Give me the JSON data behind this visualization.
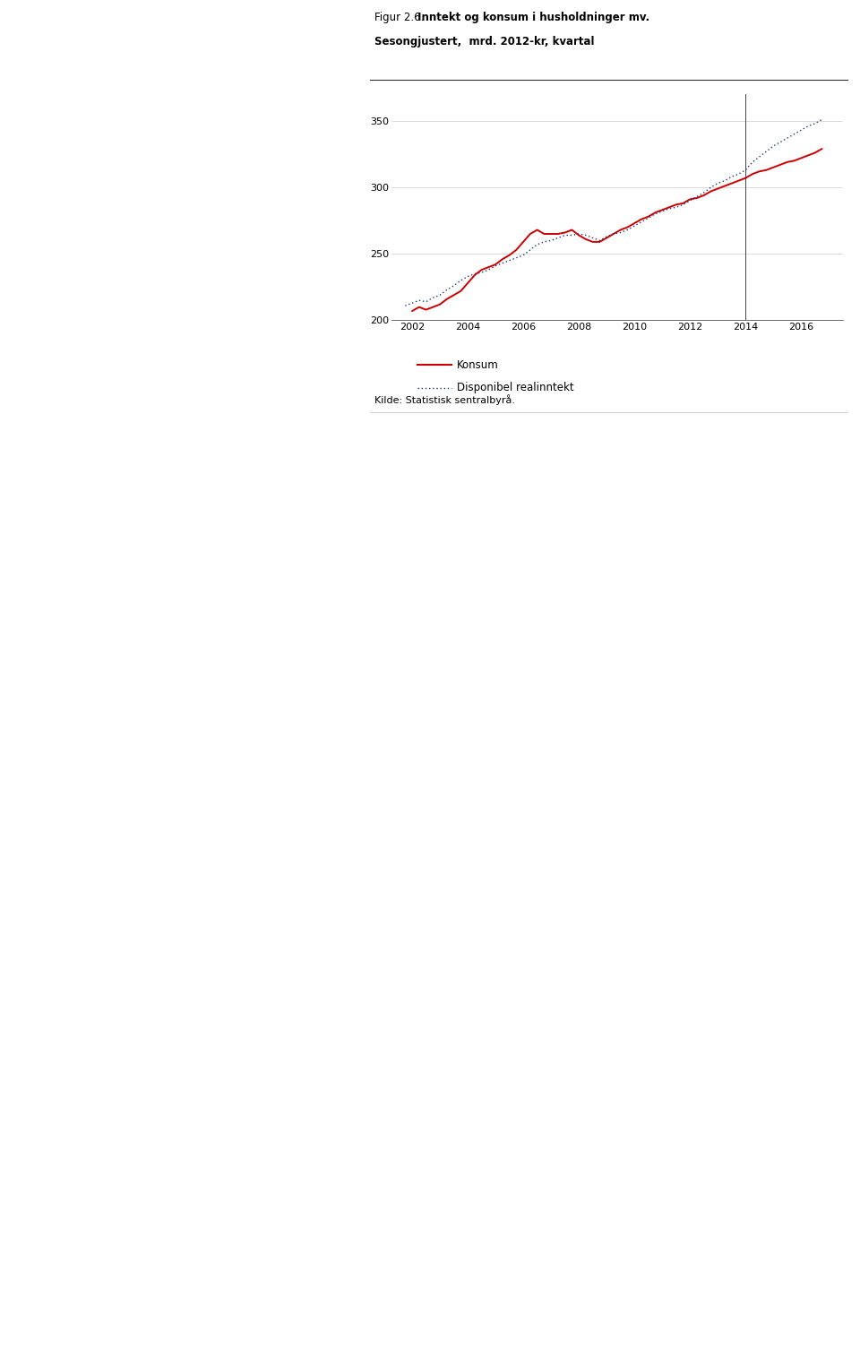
{
  "title_regular": "Figur 2.6.",
  "title_bold": " Inntekt og konsum i husholdninger mv.",
  "subtitle": "Sesongjustert,  mrd. 2012-kr, kvartal",
  "source": "Kilde: Statistisk sentralbyrå.",
  "legend_konsum": "Konsum",
  "legend_inntekt": "Disponibel realinntekt",
  "ylim": [
    200,
    370
  ],
  "yticks": [
    200,
    250,
    300,
    350
  ],
  "xmin": 2001.25,
  "xmax": 2017.5,
  "xticks": [
    2002,
    2004,
    2006,
    2008,
    2010,
    2012,
    2014,
    2016
  ],
  "vline_x": 2014.0,
  "konsum": [
    [
      2002.0,
      207
    ],
    [
      2002.25,
      210
    ],
    [
      2002.5,
      208
    ],
    [
      2002.75,
      210
    ],
    [
      2003.0,
      212
    ],
    [
      2003.25,
      216
    ],
    [
      2003.5,
      219
    ],
    [
      2003.75,
      222
    ],
    [
      2004.0,
      228
    ],
    [
      2004.25,
      234
    ],
    [
      2004.5,
      238
    ],
    [
      2004.75,
      240
    ],
    [
      2005.0,
      242
    ],
    [
      2005.25,
      246
    ],
    [
      2005.5,
      249
    ],
    [
      2005.75,
      253
    ],
    [
      2006.0,
      259
    ],
    [
      2006.25,
      265
    ],
    [
      2006.5,
      268
    ],
    [
      2006.75,
      265
    ],
    [
      2007.0,
      265
    ],
    [
      2007.25,
      265
    ],
    [
      2007.5,
      266
    ],
    [
      2007.75,
      268
    ],
    [
      2008.0,
      264
    ],
    [
      2008.25,
      261
    ],
    [
      2008.5,
      259
    ],
    [
      2008.75,
      259
    ],
    [
      2009.0,
      262
    ],
    [
      2009.25,
      265
    ],
    [
      2009.5,
      268
    ],
    [
      2009.75,
      270
    ],
    [
      2010.0,
      273
    ],
    [
      2010.25,
      276
    ],
    [
      2010.5,
      278
    ],
    [
      2010.75,
      281
    ],
    [
      2011.0,
      283
    ],
    [
      2011.25,
      285
    ],
    [
      2011.5,
      287
    ],
    [
      2011.75,
      288
    ],
    [
      2012.0,
      291
    ],
    [
      2012.25,
      292
    ],
    [
      2012.5,
      294
    ],
    [
      2012.75,
      297
    ],
    [
      2013.0,
      299
    ],
    [
      2013.25,
      301
    ],
    [
      2013.5,
      303
    ],
    [
      2013.75,
      305
    ],
    [
      2014.0,
      307
    ],
    [
      2014.25,
      310
    ],
    [
      2014.5,
      312
    ],
    [
      2014.75,
      313
    ],
    [
      2015.0,
      315
    ],
    [
      2015.25,
      317
    ],
    [
      2015.5,
      319
    ],
    [
      2015.75,
      320
    ],
    [
      2016.0,
      322
    ],
    [
      2016.25,
      324
    ],
    [
      2016.5,
      326
    ],
    [
      2016.75,
      329
    ]
  ],
  "inntekt": [
    [
      2001.75,
      211
    ],
    [
      2002.0,
      213
    ],
    [
      2002.25,
      215
    ],
    [
      2002.5,
      214
    ],
    [
      2002.75,
      217
    ],
    [
      2003.0,
      219
    ],
    [
      2003.25,
      223
    ],
    [
      2003.5,
      226
    ],
    [
      2003.75,
      230
    ],
    [
      2004.0,
      233
    ],
    [
      2004.25,
      235
    ],
    [
      2004.5,
      236
    ],
    [
      2004.75,
      238
    ],
    [
      2005.0,
      241
    ],
    [
      2005.25,
      243
    ],
    [
      2005.5,
      245
    ],
    [
      2005.75,
      247
    ],
    [
      2006.0,
      249
    ],
    [
      2006.25,
      253
    ],
    [
      2006.5,
      257
    ],
    [
      2006.75,
      259
    ],
    [
      2007.0,
      260
    ],
    [
      2007.25,
      262
    ],
    [
      2007.5,
      264
    ],
    [
      2007.75,
      264
    ],
    [
      2008.0,
      265
    ],
    [
      2008.25,
      264
    ],
    [
      2008.5,
      262
    ],
    [
      2008.75,
      260
    ],
    [
      2009.0,
      263
    ],
    [
      2009.25,
      265
    ],
    [
      2009.5,
      266
    ],
    [
      2009.75,
      268
    ],
    [
      2010.0,
      271
    ],
    [
      2010.25,
      274
    ],
    [
      2010.5,
      277
    ],
    [
      2010.75,
      280
    ],
    [
      2011.0,
      282
    ],
    [
      2011.25,
      284
    ],
    [
      2011.5,
      285
    ],
    [
      2011.75,
      287
    ],
    [
      2012.0,
      290
    ],
    [
      2012.25,
      293
    ],
    [
      2012.5,
      296
    ],
    [
      2012.75,
      300
    ],
    [
      2013.0,
      303
    ],
    [
      2013.25,
      305
    ],
    [
      2013.5,
      308
    ],
    [
      2013.75,
      310
    ],
    [
      2014.0,
      313
    ],
    [
      2014.25,
      319
    ],
    [
      2014.5,
      323
    ],
    [
      2014.75,
      327
    ],
    [
      2015.0,
      331
    ],
    [
      2015.25,
      334
    ],
    [
      2015.5,
      337
    ],
    [
      2015.75,
      340
    ],
    [
      2016.0,
      343
    ],
    [
      2016.25,
      346
    ],
    [
      2016.5,
      348
    ],
    [
      2016.75,
      351
    ]
  ],
  "konsum_color": "#cc0000",
  "inntekt_color": "#1a3a6e",
  "background_color": "#ffffff",
  "plot_bg": "#ffffff",
  "title_fontsize": 8.5,
  "subtitle_fontsize": 8.5,
  "axis_fontsize": 8,
  "legend_fontsize": 8.5,
  "source_fontsize": 8
}
